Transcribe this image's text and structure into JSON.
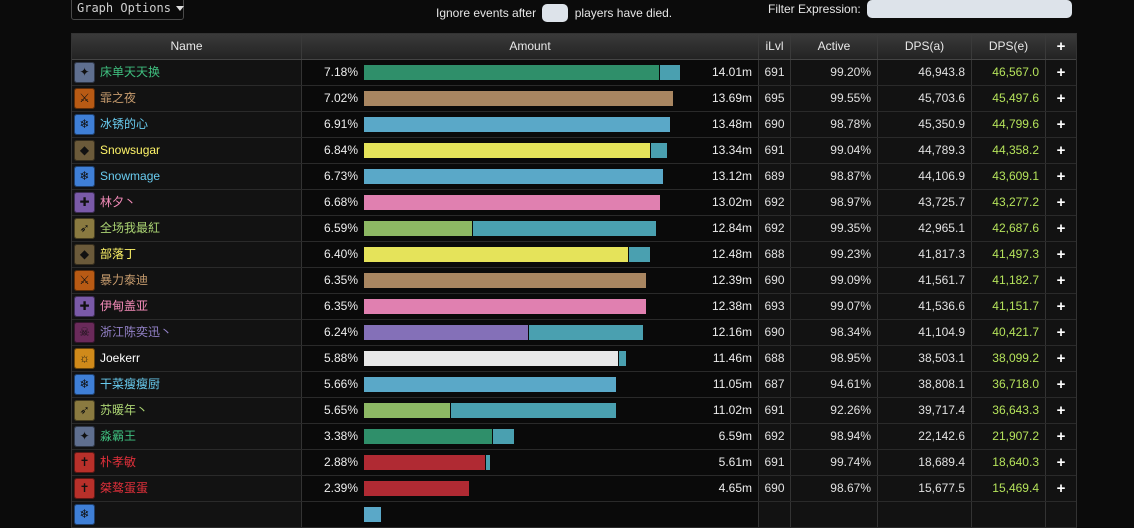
{
  "controls": {
    "graph_options": "Graph Options",
    "ignore_prefix": "Ignore events after",
    "ignore_suffix": "players have died.",
    "ignore_value": "",
    "filter_label": "Filter Expression:",
    "filter_value": ""
  },
  "columns": {
    "name": "Name",
    "amount": "Amount",
    "ilvl": "iLvl",
    "active": "Active",
    "dps_a": "DPS(a)",
    "dps_e": "DPS(e)",
    "plus": "+"
  },
  "colors": {
    "dps_e": "#b5e35b"
  },
  "rows": [
    {
      "name": "床单天天换",
      "name_color": "#3fbf7f",
      "icon": "monk-icon",
      "icon_color": "#5f6f8f",
      "pct": "7.18%",
      "bar_fraction": 0.93,
      "bar_color": "#2f8f6a",
      "bar_split": 0.932,
      "amount": "14.01m",
      "ilvl": "691",
      "active": "99.20%",
      "dps_a": "46,943.8",
      "dps_e": "46,567.0",
      "plus": "+"
    },
    {
      "name": "霏之夜",
      "name_color": "#c79c6e",
      "icon": "warrior-icon",
      "icon_color": "#b85a14",
      "pct": "7.02%",
      "bar_fraction": 0.91,
      "bar_color": "#a98661",
      "bar_split": 1.0,
      "amount": "13.69m",
      "ilvl": "695",
      "active": "99.55%",
      "dps_a": "45,703.6",
      "dps_e": "45,497.6",
      "plus": "+"
    },
    {
      "name": "冰锈的心",
      "name_color": "#69ccf0",
      "icon": "mage-icon",
      "icon_color": "#3f7fd6",
      "pct": "6.91%",
      "bar_fraction": 0.9,
      "bar_color": "#5aa8c8",
      "bar_split": 1.0,
      "amount": "13.48m",
      "ilvl": "690",
      "active": "98.78%",
      "dps_a": "45,350.9",
      "dps_e": "44,799.6",
      "plus": "+"
    },
    {
      "name": "Snowsugar",
      "name_color": "#fff569",
      "icon": "rogue-icon",
      "icon_color": "#6b5a3a",
      "pct": "6.84%",
      "bar_fraction": 0.89,
      "bar_color": "#e5e35a",
      "bar_split": 0.943,
      "amount": "13.34m",
      "ilvl": "691",
      "active": "99.04%",
      "dps_a": "44,789.3",
      "dps_e": "44,358.2",
      "plus": "+"
    },
    {
      "name": "Snowmage",
      "name_color": "#69ccf0",
      "icon": "mage-icon",
      "icon_color": "#3f7fd6",
      "pct": "6.73%",
      "bar_fraction": 0.88,
      "bar_color": "#5aa8c8",
      "bar_split": 1.0,
      "amount": "13.12m",
      "ilvl": "689",
      "active": "98.87%",
      "dps_a": "44,106.9",
      "dps_e": "43,609.1",
      "plus": "+"
    },
    {
      "name": "林夕丶",
      "name_color": "#f58cba",
      "icon": "paladin-icon",
      "icon_color": "#7a5aa8",
      "pct": "6.68%",
      "bar_fraction": 0.87,
      "bar_color": "#e080b0",
      "bar_split": 1.0,
      "amount": "13.02m",
      "ilvl": "692",
      "active": "98.97%",
      "dps_a": "43,725.7",
      "dps_e": "43,277.2",
      "plus": "+"
    },
    {
      "name": "全场我最紅",
      "name_color": "#abd473",
      "icon": "hunter-icon",
      "icon_color": "#8a7a40",
      "pct": "6.59%",
      "bar_fraction": 0.86,
      "bar_color": "#8db864",
      "bar_split": 0.37,
      "amount": "12.84m",
      "ilvl": "692",
      "active": "99.35%",
      "dps_a": "42,965.1",
      "dps_e": "42,687.6",
      "plus": "+"
    },
    {
      "name": "部落丁",
      "name_color": "#fff569",
      "icon": "rogue-icon",
      "icon_color": "#6b5a3a",
      "pct": "6.40%",
      "bar_fraction": 0.84,
      "bar_color": "#e5e35a",
      "bar_split": 0.922,
      "amount": "12.48m",
      "ilvl": "688",
      "active": "99.23%",
      "dps_a": "41,817.3",
      "dps_e": "41,497.3",
      "plus": "+"
    },
    {
      "name": "暴力泰迪",
      "name_color": "#c79c6e",
      "icon": "warrior-icon",
      "icon_color": "#b85a14",
      "pct": "6.35%",
      "bar_fraction": 0.83,
      "bar_color": "#a98661",
      "bar_split": 1.0,
      "amount": "12.39m",
      "ilvl": "690",
      "active": "99.09%",
      "dps_a": "41,561.7",
      "dps_e": "41,182.7",
      "plus": "+"
    },
    {
      "name": "伊甸盖亚",
      "name_color": "#f58cba",
      "icon": "paladin-icon",
      "icon_color": "#7a5aa8",
      "pct": "6.35%",
      "bar_fraction": 0.83,
      "bar_color": "#e080b0",
      "bar_split": 1.0,
      "amount": "12.38m",
      "ilvl": "693",
      "active": "99.07%",
      "dps_a": "41,536.6",
      "dps_e": "41,151.7",
      "plus": "+"
    },
    {
      "name": "浙江陈奕迅丶",
      "name_color": "#9482c9",
      "icon": "warlock-icon",
      "icon_color": "#6a2a5a",
      "pct": "6.24%",
      "bar_fraction": 0.82,
      "bar_color": "#8470b8",
      "bar_split": 0.588,
      "amount": "12.16m",
      "ilvl": "690",
      "active": "98.34%",
      "dps_a": "41,104.9",
      "dps_e": "40,421.7",
      "plus": "+"
    },
    {
      "name": "Joekerr",
      "name_color": "#ffffff",
      "icon": "priest-icon",
      "icon_color": "#d08a1a",
      "pct": "5.88%",
      "bar_fraction": 0.77,
      "bar_color": "#e8e8e8",
      "bar_split": 0.968,
      "amount": "11.46m",
      "ilvl": "688",
      "active": "98.95%",
      "dps_a": "38,503.1",
      "dps_e": "38,099.2",
      "plus": "+"
    },
    {
      "name": "干菜瘦瘦厨",
      "name_color": "#69ccf0",
      "icon": "mage-icon",
      "icon_color": "#3f7fd6",
      "pct": "5.66%",
      "bar_fraction": 0.74,
      "bar_color": "#5aa8c8",
      "bar_split": 1.0,
      "amount": "11.05m",
      "ilvl": "687",
      "active": "94.61%",
      "dps_a": "38,808.1",
      "dps_e": "36,718.0",
      "plus": "+"
    },
    {
      "name": "苏暖年丶",
      "name_color": "#abd473",
      "icon": "hunter-icon",
      "icon_color": "#8a7a40",
      "pct": "5.65%",
      "bar_fraction": 0.74,
      "bar_color": "#8db864",
      "bar_split": 0.34,
      "amount": "11.02m",
      "ilvl": "691",
      "active": "92.26%",
      "dps_a": "39,717.4",
      "dps_e": "36,643.3",
      "plus": "+"
    },
    {
      "name": "淼霸王",
      "name_color": "#3fbf7f",
      "icon": "monk-icon",
      "icon_color": "#5f6f8f",
      "pct": "3.38%",
      "bar_fraction": 0.44,
      "bar_color": "#2f8f6a",
      "bar_split": 0.85,
      "amount": "6.59m",
      "ilvl": "692",
      "active": "98.94%",
      "dps_a": "22,142.6",
      "dps_e": "21,907.2",
      "plus": "+"
    },
    {
      "name": "朴孝敏",
      "name_color": "#e0303a",
      "icon": "deathknight-icon",
      "icon_color": "#b8302a",
      "pct": "2.88%",
      "bar_fraction": 0.37,
      "bar_color": "#b02a33",
      "bar_split": 0.96,
      "amount": "5.61m",
      "ilvl": "691",
      "active": "99.74%",
      "dps_a": "18,689.4",
      "dps_e": "18,640.3",
      "plus": "+"
    },
    {
      "name": "桀骜蛋蛋",
      "name_color": "#e0303a",
      "icon": "deathknight-icon",
      "icon_color": "#b8302a",
      "pct": "2.39%",
      "bar_fraction": 0.31,
      "bar_color": "#b02a33",
      "bar_split": 1.0,
      "amount": "4.65m",
      "ilvl": "690",
      "active": "98.67%",
      "dps_a": "15,677.5",
      "dps_e": "15,469.4",
      "plus": "+"
    },
    {
      "name": "",
      "name_color": "#69ccf0",
      "icon": "mage-icon",
      "icon_color": "#3f7fd6",
      "pct": "",
      "bar_fraction": 0.05,
      "bar_color": "#5aa8c8",
      "bar_split": 1.0,
      "amount": "",
      "ilvl": "",
      "active": "",
      "dps_a": "",
      "dps_e": "",
      "plus": ""
    }
  ]
}
